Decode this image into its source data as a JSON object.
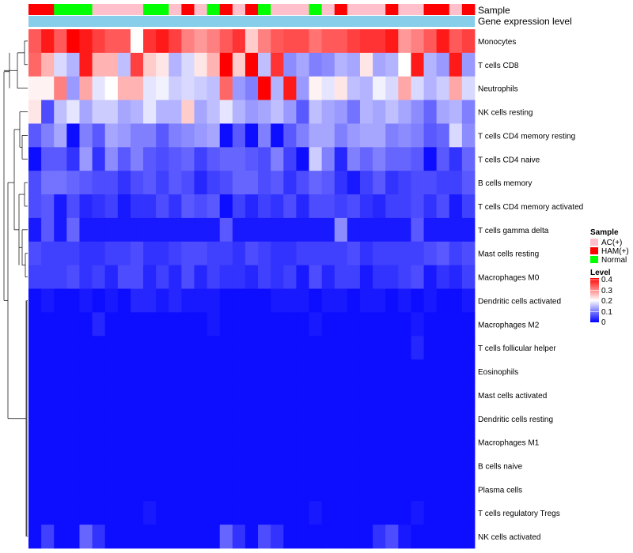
{
  "chart_data": {
    "type": "heatmap",
    "title": "",
    "annotation_labels": [
      "Sample",
      "Gene expression level"
    ],
    "rows": [
      "Monocytes",
      "T cells CD8",
      "Neutrophils",
      "NK cells resting",
      "T cells CD4 memory resting",
      "T cells CD4 naive",
      "B cells memory",
      "T cells CD4 memory activated",
      "T cells gamma delta",
      "Mast cells resting",
      "Macrophages M0",
      "Dendritic cells activated",
      "Macrophages M2",
      "T cells follicular helper",
      "Eosinophils",
      "Mast cells activated",
      "Dendritic cells resting",
      "Macrophages M1",
      "B cells naive",
      "Plasma cells",
      "T cells regulatory  Tregs",
      "NK cells activated"
    ],
    "sample_groups": [
      "HAM",
      "HAM",
      "Normal",
      "Normal",
      "Normal",
      "AC",
      "AC",
      "AC",
      "AC",
      "Normal",
      "Normal",
      "AC",
      "HAM",
      "AC",
      "Normal",
      "HAM",
      "AC",
      "HAM",
      "Normal",
      "AC",
      "AC",
      "AC",
      "Normal",
      "AC",
      "HAM",
      "AC",
      "AC",
      "AC",
      "HAM",
      "AC",
      "AC",
      "HAM",
      "HAM",
      "AC",
      "HAM"
    ],
    "values": [
      [
        0.33,
        0.38,
        0.33,
        0.4,
        0.38,
        0.35,
        0.33,
        0.33,
        0.2,
        0.36,
        0.38,
        0.35,
        0.3,
        0.28,
        0.3,
        0.33,
        0.36,
        0.24,
        0.3,
        0.33,
        0.34,
        0.34,
        0.31,
        0.33,
        0.33,
        0.35,
        0.36,
        0.36,
        0.38,
        0.28,
        0.3,
        0.33,
        0.38,
        0.33,
        0.35
      ],
      [
        0.32,
        0.26,
        0.17,
        0.14,
        0.38,
        0.26,
        0.26,
        0.15,
        0.35,
        0.24,
        0.22,
        0.14,
        0.17,
        0.22,
        0.26,
        0.4,
        0.24,
        0.4,
        0.15,
        0.36,
        0.11,
        0.13,
        0.1,
        0.11,
        0.14,
        0.13,
        0.22,
        0.13,
        0.14,
        0.2,
        0.38,
        0.14,
        0.12,
        0.38,
        0.12
      ],
      [
        0.21,
        0.21,
        0.3,
        0.12,
        0.27,
        0.18,
        0.2,
        0.26,
        0.26,
        0.18,
        0.19,
        0.16,
        0.17,
        0.16,
        0.15,
        0.32,
        0.12,
        0.1,
        0.4,
        0.14,
        0.38,
        0.12,
        0.21,
        0.18,
        0.22,
        0.15,
        0.14,
        0.19,
        0.17,
        0.27,
        0.17,
        0.14,
        0.16,
        0.27,
        0.17
      ],
      [
        0.22,
        0.06,
        0.15,
        0.18,
        0.13,
        0.16,
        0.16,
        0.13,
        0.14,
        0.18,
        0.14,
        0.14,
        0.24,
        0.13,
        0.15,
        0.18,
        0.14,
        0.12,
        0.13,
        0.15,
        0.12,
        0.07,
        0.15,
        0.13,
        0.12,
        0.09,
        0.14,
        0.13,
        0.15,
        0.13,
        0.11,
        0.08,
        0.13,
        0.14,
        0.1
      ],
      [
        0.07,
        0.1,
        0.13,
        0.01,
        0.1,
        0.07,
        0.13,
        0.12,
        0.1,
        0.1,
        0.07,
        0.1,
        0.11,
        0.12,
        0.13,
        0.01,
        0.07,
        0.01,
        0.1,
        0.01,
        0.07,
        0.1,
        0.13,
        0.13,
        0.1,
        0.12,
        0.13,
        0.13,
        0.1,
        0.11,
        0.1,
        0.07,
        0.08,
        0.17,
        0.11
      ],
      [
        0.01,
        0.07,
        0.07,
        0.04,
        0.12,
        0.04,
        0.11,
        0.07,
        0.1,
        0.07,
        0.06,
        0.07,
        0.08,
        0.05,
        0.07,
        0.08,
        0.08,
        0.07,
        0.06,
        0.1,
        0.05,
        0.01,
        0.16,
        0.1,
        0.03,
        0.1,
        0.08,
        0.1,
        0.08,
        0.08,
        0.07,
        0.01,
        0.07,
        0.04,
        0.08
      ],
      [
        0.06,
        0.09,
        0.09,
        0.08,
        0.07,
        0.06,
        0.06,
        0.04,
        0.06,
        0.07,
        0.05,
        0.07,
        0.06,
        0.03,
        0.05,
        0.06,
        0.08,
        0.08,
        0.06,
        0.07,
        0.04,
        0.06,
        0.08,
        0.07,
        0.04,
        0.02,
        0.05,
        0.07,
        0.04,
        0.05,
        0.06,
        0.06,
        0.05,
        0.05,
        0.07
      ],
      [
        0.06,
        0.07,
        0.02,
        0.06,
        0.03,
        0.04,
        0.05,
        0.02,
        0.04,
        0.04,
        0.06,
        0.04,
        0.07,
        0.06,
        0.07,
        0.01,
        0.05,
        0.03,
        0.05,
        0.04,
        0.06,
        0.03,
        0.06,
        0.06,
        0.05,
        0.06,
        0.04,
        0.03,
        0.05,
        0.05,
        0.06,
        0.04,
        0.06,
        0.02,
        0.05
      ],
      [
        0.02,
        0.07,
        0.02,
        0.08,
        0.02,
        0.02,
        0.02,
        0.02,
        0.02,
        0.02,
        0.02,
        0.02,
        0.02,
        0.02,
        0.02,
        0.07,
        0.02,
        0.02,
        0.02,
        0.02,
        0.02,
        0.02,
        0.02,
        0.02,
        0.11,
        0.02,
        0.02,
        0.02,
        0.02,
        0.02,
        0.07,
        0.02,
        0.02,
        0.02,
        0.02
      ],
      [
        0.06,
        0.05,
        0.05,
        0.05,
        0.04,
        0.04,
        0.05,
        0.05,
        0.06,
        0.04,
        0.04,
        0.05,
        0.06,
        0.06,
        0.05,
        0.05,
        0.04,
        0.06,
        0.05,
        0.04,
        0.04,
        0.05,
        0.05,
        0.05,
        0.05,
        0.06,
        0.04,
        0.05,
        0.05,
        0.05,
        0.05,
        0.06,
        0.07,
        0.05,
        0.06
      ],
      [
        0.05,
        0.05,
        0.05,
        0.06,
        0.04,
        0.05,
        0.03,
        0.06,
        0.06,
        0.03,
        0.05,
        0.03,
        0.06,
        0.03,
        0.05,
        0.04,
        0.04,
        0.03,
        0.05,
        0.04,
        0.05,
        0.02,
        0.06,
        0.03,
        0.05,
        0.05,
        0.02,
        0.04,
        0.04,
        0.05,
        0.06,
        0.02,
        0.04,
        0.03,
        0.05
      ],
      [
        0.01,
        0.02,
        0.01,
        0.01,
        0.02,
        0.01,
        0.02,
        0.01,
        0.03,
        0.03,
        0.02,
        0.03,
        0.02,
        0.02,
        0.02,
        0.01,
        0.01,
        0.01,
        0.01,
        0.02,
        0.02,
        0.02,
        0.01,
        0.02,
        0.02,
        0.01,
        0.02,
        0.02,
        0.01,
        0.02,
        0.01,
        0.02,
        0.01,
        0.01,
        0.02
      ],
      [
        0.01,
        0.01,
        0.01,
        0.01,
        0.01,
        0.03,
        0.01,
        0.01,
        0.01,
        0.01,
        0.01,
        0.01,
        0.01,
        0.01,
        0.02,
        0.01,
        0.01,
        0.01,
        0.01,
        0.01,
        0.01,
        0.01,
        0.02,
        0.01,
        0.01,
        0.01,
        0.01,
        0.01,
        0.01,
        0.01,
        0.02,
        0.01,
        0.01,
        0.01,
        0.01
      ],
      [
        0.01,
        0.01,
        0.01,
        0.01,
        0.01,
        0.01,
        0.01,
        0.01,
        0.01,
        0.01,
        0.01,
        0.01,
        0.01,
        0.01,
        0.01,
        0.01,
        0.01,
        0.01,
        0.01,
        0.01,
        0.01,
        0.01,
        0.01,
        0.01,
        0.01,
        0.01,
        0.01,
        0.01,
        0.01,
        0.01,
        0.03,
        0.01,
        0.01,
        0.01,
        0.01
      ],
      [
        0.01,
        0.01,
        0.01,
        0.01,
        0.01,
        0.01,
        0.01,
        0.01,
        0.01,
        0.01,
        0.01,
        0.01,
        0.01,
        0.01,
        0.01,
        0.01,
        0.01,
        0.01,
        0.01,
        0.01,
        0.01,
        0.01,
        0.01,
        0.01,
        0.01,
        0.01,
        0.01,
        0.01,
        0.01,
        0.01,
        0.01,
        0.01,
        0.01,
        0.01,
        0.01
      ],
      [
        0.01,
        0.01,
        0.01,
        0.01,
        0.01,
        0.01,
        0.01,
        0.01,
        0.01,
        0.01,
        0.01,
        0.01,
        0.01,
        0.01,
        0.01,
        0.01,
        0.01,
        0.01,
        0.01,
        0.01,
        0.01,
        0.01,
        0.01,
        0.01,
        0.01,
        0.01,
        0.01,
        0.01,
        0.01,
        0.01,
        0.01,
        0.01,
        0.01,
        0.01,
        0.01
      ],
      [
        0.01,
        0.01,
        0.01,
        0.01,
        0.01,
        0.01,
        0.01,
        0.01,
        0.01,
        0.01,
        0.01,
        0.01,
        0.01,
        0.01,
        0.01,
        0.01,
        0.01,
        0.01,
        0.01,
        0.01,
        0.01,
        0.01,
        0.01,
        0.01,
        0.01,
        0.01,
        0.01,
        0.01,
        0.01,
        0.01,
        0.01,
        0.01,
        0.01,
        0.01,
        0.01
      ],
      [
        0.01,
        0.01,
        0.01,
        0.01,
        0.01,
        0.01,
        0.01,
        0.01,
        0.01,
        0.01,
        0.01,
        0.01,
        0.01,
        0.01,
        0.01,
        0.01,
        0.01,
        0.01,
        0.01,
        0.01,
        0.01,
        0.01,
        0.01,
        0.01,
        0.01,
        0.01,
        0.01,
        0.01,
        0.01,
        0.01,
        0.01,
        0.01,
        0.01,
        0.01,
        0.01
      ],
      [
        0.01,
        0.01,
        0.01,
        0.01,
        0.01,
        0.01,
        0.01,
        0.01,
        0.01,
        0.01,
        0.01,
        0.01,
        0.01,
        0.01,
        0.01,
        0.01,
        0.01,
        0.01,
        0.01,
        0.01,
        0.01,
        0.01,
        0.01,
        0.01,
        0.01,
        0.01,
        0.01,
        0.01,
        0.01,
        0.01,
        0.01,
        0.01,
        0.01,
        0.01,
        0.01
      ],
      [
        0.01,
        0.01,
        0.01,
        0.01,
        0.01,
        0.01,
        0.01,
        0.01,
        0.01,
        0.01,
        0.01,
        0.01,
        0.01,
        0.01,
        0.01,
        0.01,
        0.01,
        0.01,
        0.01,
        0.01,
        0.01,
        0.01,
        0.01,
        0.01,
        0.01,
        0.01,
        0.01,
        0.01,
        0.01,
        0.01,
        0.01,
        0.01,
        0.01,
        0.01,
        0.01
      ],
      [
        0.01,
        0.01,
        0.01,
        0.01,
        0.01,
        0.01,
        0.01,
        0.01,
        0.01,
        0.02,
        0.01,
        0.01,
        0.01,
        0.01,
        0.01,
        0.01,
        0.01,
        0.01,
        0.01,
        0.01,
        0.01,
        0.01,
        0.02,
        0.01,
        0.01,
        0.01,
        0.01,
        0.01,
        0.01,
        0.01,
        0.02,
        0.01,
        0.01,
        0.01,
        0.01
      ],
      [
        0.01,
        0.05,
        0.01,
        0.01,
        0.08,
        0.04,
        0.01,
        0.01,
        0.01,
        0.01,
        0.01,
        0.01,
        0.01,
        0.01,
        0.01,
        0.08,
        0.04,
        0.01,
        0.06,
        0.04,
        0.01,
        0.01,
        0.01,
        0.01,
        0.01,
        0.01,
        0.01,
        0.04,
        0.06,
        0.02,
        0.01,
        0.01,
        0.01,
        0.01,
        0.01
      ]
    ],
    "legend_sample": {
      "title": "Sample",
      "entries": [
        "AC(+)",
        "HAM(+)",
        "Normal"
      ]
    },
    "legend_level": {
      "title": "Level",
      "ticks": [
        "0.4",
        "0.3",
        "0.2",
        "0.1",
        "0"
      ],
      "range": [
        0,
        0.4
      ]
    }
  },
  "colors": {
    "AC": "#FFC0CB",
    "HAM": "#FF0000",
    "Normal": "#00FF00",
    "gene_bar": "#87CEEB",
    "low": "#0000FF",
    "mid": "#FFFFFF",
    "high": "#FF0000"
  }
}
